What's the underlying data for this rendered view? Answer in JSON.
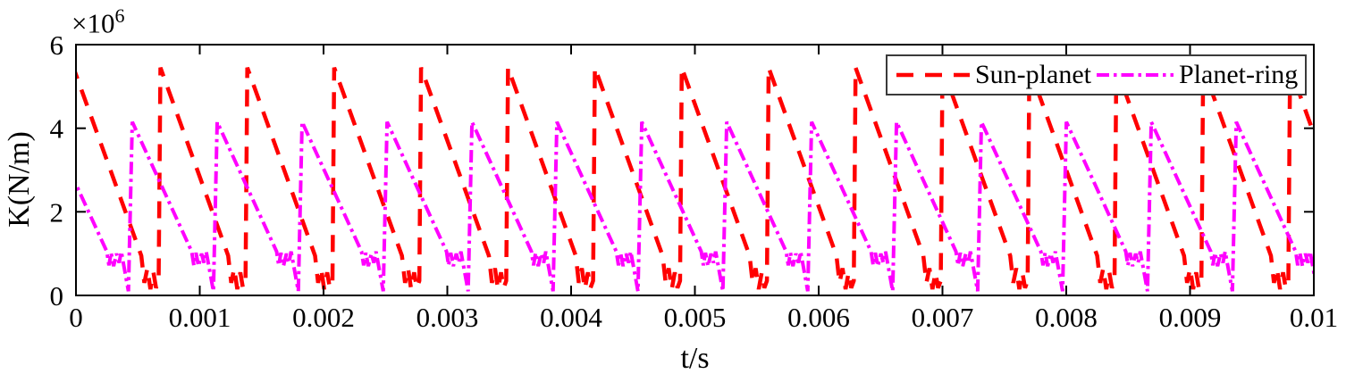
{
  "page": {
    "background": "#ffffff",
    "axis_color": "#000000"
  },
  "chart_data": {
    "type": "line",
    "title": "",
    "xlabel": "t/s",
    "ylabel": "K(N/m)",
    "y_scale": {
      "base": "×10",
      "exponent": "6"
    },
    "xlim": [
      0,
      0.01
    ],
    "ylim": [
      0,
      6000000
    ],
    "grid": false,
    "legend_position": "top-right",
    "xticks": [
      {
        "v": 0,
        "label": "0"
      },
      {
        "v": 0.001,
        "label": "0.001"
      },
      {
        "v": 0.002,
        "label": "0.002"
      },
      {
        "v": 0.003,
        "label": "0.003"
      },
      {
        "v": 0.004,
        "label": "0.004"
      },
      {
        "v": 0.005,
        "label": "0.005"
      },
      {
        "v": 0.006,
        "label": "0.006"
      },
      {
        "v": 0.007,
        "label": "0.007"
      },
      {
        "v": 0.008,
        "label": "0.008"
      },
      {
        "v": 0.009,
        "label": "0.009"
      },
      {
        "v": 0.01,
        "label": "0.01"
      }
    ],
    "yticks": [
      {
        "v": 0,
        "label": "0"
      },
      {
        "v": 2000000,
        "label": "2"
      },
      {
        "v": 4000000,
        "label": "4"
      },
      {
        "v": 6000000,
        "label": "6"
      }
    ],
    "series": [
      {
        "name": "Sun-planet",
        "color": "#ff0000",
        "line_style": "dashed",
        "dash": [
          19,
          13
        ],
        "width": 4.5,
        "waveform": {
          "period_s": 0.000702,
          "first_cycle_start_s": -2e-05,
          "value_unit": 1000000,
          "peak": 5450000,
          "trough": 150000,
          "cycle_points": [
            [
              0.0,
              5.45
            ],
            [
              0.78,
              0.95
            ],
            [
              0.815,
              0.3
            ],
            [
              0.85,
              0.65
            ],
            [
              0.885,
              0.15
            ],
            [
              0.92,
              0.55
            ],
            [
              0.95,
              0.18
            ],
            [
              0.98,
              0.35
            ]
          ]
        }
      },
      {
        "name": "Planet-ring",
        "color": "#ff00ff",
        "line_style": "dash-dot",
        "dash": [
          14,
          5,
          3.5,
          5
        ],
        "width": 4,
        "waveform": {
          "period_s": 0.000686,
          "first_cycle_start_s": -0.000231,
          "value_unit": 1000000,
          "peak": 4150000,
          "trough": 100000,
          "cycle_points": [
            [
              0.0,
              4.15
            ],
            [
              0.7,
              1.05
            ],
            [
              0.725,
              0.72
            ],
            [
              0.75,
              1.02
            ],
            [
              0.78,
              0.7
            ],
            [
              0.815,
              1.0
            ],
            [
              0.845,
              0.78
            ],
            [
              0.87,
              1.05
            ],
            [
              0.955,
              0.1
            ]
          ]
        }
      }
    ]
  }
}
